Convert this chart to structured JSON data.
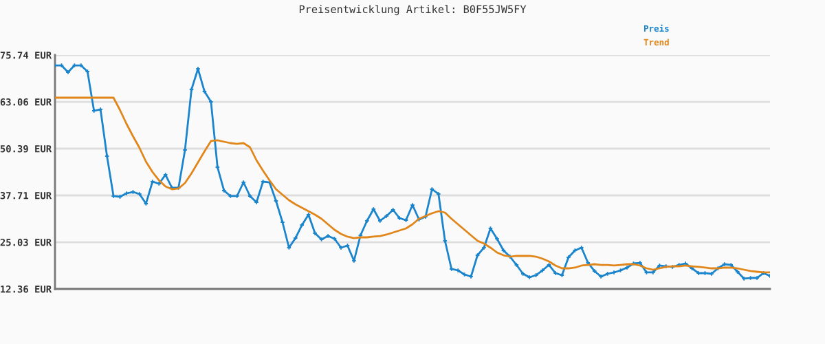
{
  "chart_data": {
    "type": "line",
    "title": "Preisentwicklung Artikel: B0F55JW5FY",
    "categories": [
      null,
      null,
      null,
      null,
      null,
      null,
      null,
      null,
      null,
      null,
      null,
      null,
      null,
      null,
      null,
      null,
      null,
      null,
      null,
      null,
      null,
      null,
      null,
      null,
      null,
      null,
      null,
      null,
      null,
      null,
      null,
      null,
      null,
      null,
      null,
      null,
      null,
      null,
      null,
      null,
      null,
      null,
      null,
      null,
      null,
      null,
      null,
      null,
      null,
      null,
      null,
      null,
      null,
      null,
      null,
      null,
      null,
      null,
      null,
      null,
      null,
      null,
      null,
      null,
      null,
      null,
      null,
      null,
      null,
      null,
      null,
      null,
      null,
      null,
      null,
      null,
      null,
      null,
      null,
      null,
      null,
      null,
      null,
      null,
      null,
      null,
      null,
      null,
      null,
      null,
      null,
      null,
      null,
      null,
      null,
      null,
      null,
      null,
      null,
      null,
      null,
      null,
      null,
      null,
      null,
      null,
      null,
      null,
      null,
      null,
      null
    ],
    "series": [
      {
        "name": "Preis",
        "color": "#1a84cc",
        "marker": "cross",
        "values": [
          72.94,
          72.94,
          71.08,
          72.94,
          72.94,
          71.27,
          60.64,
          61.01,
          48.34,
          37.53,
          37.34,
          38.27,
          38.64,
          38.09,
          35.48,
          41.44,
          40.88,
          43.3,
          39.76,
          39.76,
          50.02,
          66.42,
          72.01,
          65.86,
          63.06,
          45.36,
          39.02,
          37.53,
          37.53,
          41.25,
          37.53,
          35.85,
          41.44,
          41.25,
          36.22,
          30.44,
          23.55,
          26.15,
          29.7,
          32.49,
          27.46,
          25.78,
          26.71,
          25.97,
          23.55,
          24.1,
          20.0,
          26.9,
          30.82,
          33.98,
          30.82,
          32.12,
          33.8,
          31.56,
          31.0,
          35.1,
          31.19,
          31.93,
          39.39,
          38.09,
          25.41,
          17.77,
          17.39,
          16.27,
          15.72,
          21.49,
          23.55,
          28.76,
          25.97,
          22.8,
          21.12,
          18.88,
          16.46,
          15.53,
          16.09,
          17.39,
          18.88,
          16.65,
          16.09,
          20.94,
          22.8,
          23.55,
          19.44,
          17.21,
          15.72,
          16.46,
          16.84,
          17.39,
          18.14,
          19.26,
          19.44,
          16.84,
          16.84,
          18.7,
          18.51,
          18.33,
          18.88,
          19.26,
          17.95,
          16.65,
          16.65,
          16.46,
          17.95,
          19.07,
          18.88,
          17.02,
          15.16,
          15.34,
          15.34,
          16.65,
          15.9
        ]
      },
      {
        "name": "Trend",
        "color": "#e0861a",
        "marker": "none",
        "values": [
          64.18,
          64.18,
          64.18,
          64.18,
          64.18,
          64.18,
          64.18,
          64.18,
          64.18,
          64.18,
          60.83,
          57.1,
          53.74,
          50.57,
          46.85,
          44.05,
          41.81,
          40.14,
          39.39,
          39.58,
          41.07,
          43.68,
          46.66,
          49.64,
          52.44,
          52.63,
          52.25,
          51.88,
          51.69,
          51.88,
          50.76,
          47.22,
          44.42,
          41.81,
          39.39,
          37.9,
          36.41,
          35.29,
          34.36,
          33.43,
          32.49,
          31.37,
          29.88,
          28.39,
          27.27,
          26.53,
          26.15,
          26.34,
          26.34,
          26.53,
          26.71,
          27.09,
          27.65,
          28.21,
          28.76,
          29.88,
          31.37,
          32.12,
          32.87,
          33.43,
          33.05,
          31.37,
          29.88,
          28.39,
          26.9,
          25.41,
          24.66,
          23.55,
          22.24,
          21.49,
          21.12,
          21.31,
          21.31,
          21.31,
          21.12,
          20.56,
          19.82,
          18.7,
          17.95,
          17.95,
          18.14,
          18.7,
          18.88,
          19.07,
          18.88,
          18.88,
          18.7,
          18.88,
          19.07,
          19.07,
          18.7,
          17.95,
          17.58,
          17.95,
          18.33,
          18.51,
          18.51,
          18.7,
          18.51,
          18.33,
          18.14,
          17.95,
          17.95,
          18.14,
          18.14,
          17.95,
          17.58,
          17.21,
          17.02,
          16.84,
          16.84
        ]
      }
    ],
    "ylim": [
      12.36,
      75.74
    ],
    "yticks": [
      {
        "value": 12.36,
        "label": "12.36 EUR"
      },
      {
        "value": 25.03,
        "label": "25.03 EUR"
      },
      {
        "value": 37.71,
        "label": "37.71 EUR"
      },
      {
        "value": 50.39,
        "label": "50.39 EUR"
      },
      {
        "value": 63.06,
        "label": "63.06 EUR"
      },
      {
        "value": 75.74,
        "label": "75.74 EUR"
      }
    ],
    "grid": "y",
    "legend": "top right",
    "tick_labels": "y",
    "line_style": "solid"
  }
}
